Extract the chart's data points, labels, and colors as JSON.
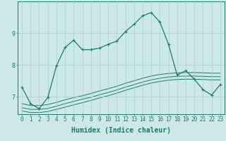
{
  "bg_color": "#cde8e8",
  "line_color": "#1a7a6e",
  "grid_color": "#aacfcf",
  "xlabel": "Humidex (Indice chaleur)",
  "xlabel_fontsize": 7.0,
  "tick_fontsize": 5.5,
  "ylabel_ticks": [
    7,
    8,
    9
  ],
  "xlim": [
    -0.5,
    23.5
  ],
  "ylim": [
    6.45,
    10.0
  ],
  "line1_x": [
    0,
    1,
    2,
    3,
    4,
    5,
    6,
    7,
    8,
    9,
    10,
    11,
    12,
    13,
    14,
    15,
    16,
    17,
    18,
    19,
    20,
    21,
    22,
    23
  ],
  "line1_y": [
    7.3,
    6.78,
    6.62,
    6.97,
    7.97,
    8.55,
    8.78,
    8.48,
    8.48,
    8.53,
    8.65,
    8.75,
    9.05,
    9.28,
    9.55,
    9.65,
    9.35,
    8.65,
    7.68,
    7.82,
    7.55,
    7.22,
    7.05,
    7.38
  ],
  "line2_x": [
    0,
    1,
    2,
    3,
    4,
    5,
    6,
    7,
    8,
    9,
    10,
    11,
    12,
    13,
    14,
    15,
    16,
    17,
    18,
    19,
    20,
    21,
    22,
    23
  ],
  "line2_y": [
    6.78,
    6.72,
    6.72,
    6.75,
    6.82,
    6.9,
    6.97,
    7.03,
    7.1,
    7.18,
    7.25,
    7.33,
    7.42,
    7.5,
    7.58,
    7.65,
    7.7,
    7.73,
    7.75,
    7.76,
    7.76,
    7.75,
    7.74,
    7.74
  ],
  "line3_x": [
    0,
    1,
    2,
    3,
    4,
    5,
    6,
    7,
    8,
    9,
    10,
    11,
    12,
    13,
    14,
    15,
    16,
    17,
    18,
    19,
    20,
    21,
    22,
    23
  ],
  "line3_y": [
    6.65,
    6.6,
    6.6,
    6.63,
    6.7,
    6.78,
    6.85,
    6.92,
    6.98,
    7.06,
    7.13,
    7.21,
    7.3,
    7.38,
    7.46,
    7.53,
    7.58,
    7.62,
    7.64,
    7.65,
    7.65,
    7.64,
    7.63,
    7.63
  ],
  "line4_x": [
    0,
    1,
    2,
    3,
    4,
    5,
    6,
    7,
    8,
    9,
    10,
    11,
    12,
    13,
    14,
    15,
    16,
    17,
    18,
    19,
    20,
    21,
    22,
    23
  ],
  "line4_y": [
    6.55,
    6.5,
    6.5,
    6.53,
    6.6,
    6.67,
    6.74,
    6.81,
    6.88,
    6.96,
    7.03,
    7.11,
    7.2,
    7.28,
    7.36,
    7.43,
    7.48,
    7.52,
    7.54,
    7.55,
    7.55,
    7.54,
    7.53,
    7.53
  ]
}
